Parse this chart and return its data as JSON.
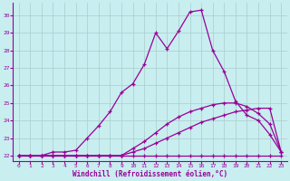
{
  "xlabel": "Windchill (Refroidissement éolien,°C)",
  "bg_color": "#c8eef0",
  "line_color": "#990099",
  "grid_color": "#aacccc",
  "xlim": [
    -0.5,
    23.5
  ],
  "ylim": [
    21.7,
    30.7
  ],
  "yticks": [
    22,
    23,
    24,
    25,
    26,
    27,
    28,
    29,
    30
  ],
  "xticks": [
    0,
    1,
    2,
    3,
    4,
    5,
    6,
    7,
    8,
    9,
    10,
    11,
    12,
    13,
    14,
    15,
    16,
    17,
    18,
    19,
    20,
    21,
    22,
    23
  ],
  "line1_x": [
    0,
    1,
    2,
    3,
    4,
    5,
    6,
    7,
    8,
    9,
    10,
    11,
    12,
    13,
    14,
    15,
    16,
    17,
    18,
    19,
    20,
    21,
    22,
    23
  ],
  "line1_y": [
    22.0,
    22.0,
    22.0,
    22.0,
    22.0,
    22.0,
    22.0,
    22.0,
    22.0,
    22.0,
    22.0,
    22.0,
    22.0,
    22.0,
    22.0,
    22.0,
    22.0,
    22.0,
    22.0,
    22.0,
    22.0,
    22.0,
    22.0,
    22.0
  ],
  "line2_x": [
    0,
    1,
    2,
    3,
    4,
    5,
    6,
    7,
    8,
    9,
    10,
    11,
    12,
    13,
    14,
    15,
    16,
    17,
    18,
    19,
    20,
    21,
    22,
    23
  ],
  "line2_y": [
    22.0,
    22.0,
    22.0,
    22.0,
    22.0,
    22.0,
    22.0,
    22.0,
    22.0,
    22.0,
    22.2,
    22.4,
    22.7,
    23.0,
    23.3,
    23.6,
    23.9,
    24.1,
    24.3,
    24.5,
    24.6,
    24.7,
    24.7,
    22.2
  ],
  "line3_x": [
    0,
    1,
    2,
    3,
    4,
    5,
    6,
    7,
    8,
    9,
    10,
    11,
    12,
    13,
    14,
    15,
    16,
    17,
    18,
    19,
    20,
    21,
    22,
    23
  ],
  "line3_y": [
    22.0,
    22.0,
    22.0,
    22.0,
    22.0,
    22.0,
    22.0,
    22.0,
    22.0,
    22.0,
    22.4,
    22.8,
    23.3,
    23.8,
    24.2,
    24.5,
    24.7,
    24.9,
    25.0,
    25.0,
    24.8,
    24.4,
    23.8,
    22.2
  ],
  "line4_x": [
    0,
    1,
    2,
    3,
    4,
    5,
    6,
    7,
    8,
    9,
    10,
    11,
    12,
    13,
    14,
    15,
    16,
    17,
    18,
    19,
    20,
    21,
    22,
    23
  ],
  "line4_y": [
    22.0,
    22.0,
    22.0,
    22.2,
    22.2,
    22.3,
    23.0,
    23.7,
    24.5,
    25.6,
    26.1,
    27.2,
    29.0,
    28.1,
    29.1,
    30.2,
    30.3,
    28.0,
    26.8,
    25.1,
    24.3,
    24.0,
    23.2,
    22.2
  ]
}
